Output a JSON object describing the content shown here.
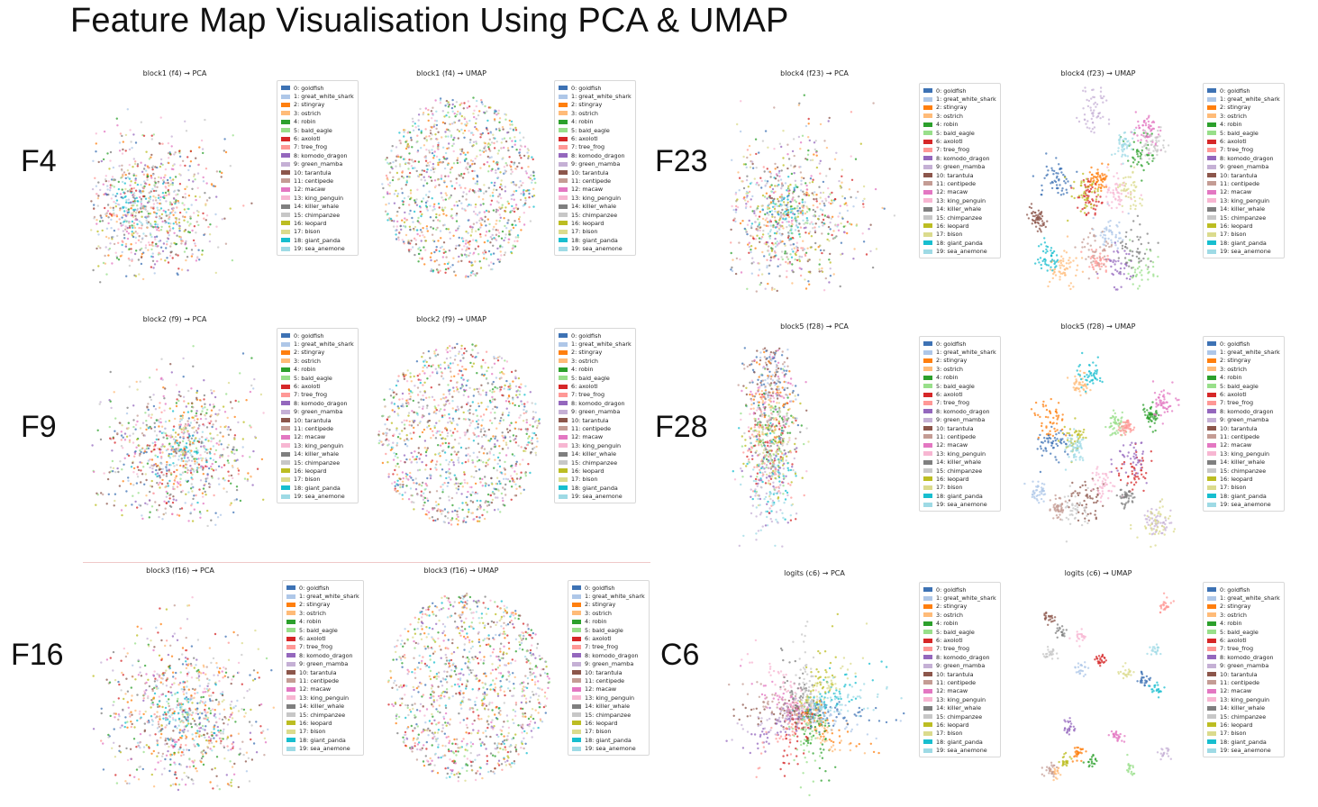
{
  "page_title": "Feature Map Visualisation Using PCA & UMAP",
  "row_labels": [
    "F4",
    "F23",
    "F9",
    "F28",
    "F16",
    "C6"
  ],
  "classes": [
    "0: goldfish",
    "1: great_white_shark",
    "2: stingray",
    "3: ostrich",
    "4: robin",
    "5: bald_eagle",
    "6: axolotl",
    "7: tree_frog",
    "8: komodo_dragon",
    "9: green_mamba",
    "10: tarantula",
    "11: centipede",
    "12: macaw",
    "13: king_penguin",
    "14: killer_whale",
    "15: chimpanzee",
    "16: leopard",
    "17: bison",
    "18: giant_panda",
    "19: sea_anemone"
  ],
  "class_colors": [
    "#3d72b4",
    "#aec7e8",
    "#ff7f0e",
    "#ffbb78",
    "#2ca02c",
    "#98df8a",
    "#d62728",
    "#ff9896",
    "#9467bd",
    "#c5b0d5",
    "#8c564b",
    "#c49c94",
    "#e377c2",
    "#f7b6d2",
    "#7f7f7f",
    "#c7c7c7",
    "#bcbd22",
    "#dbdb8d",
    "#17becf",
    "#9edae5"
  ],
  "chart_data": [
    {
      "type": "scatter",
      "title": "block1 (f4) → PCA",
      "group": "F4"
    },
    {
      "type": "scatter",
      "title": "block1 (f4) → UMAP",
      "group": "F4"
    },
    {
      "type": "scatter",
      "title": "block4 (f23) → PCA",
      "group": "F23"
    },
    {
      "type": "scatter",
      "title": "block4 (f23) → UMAP",
      "group": "F23"
    },
    {
      "type": "scatter",
      "title": "block2 (f9) → PCA",
      "group": "F9"
    },
    {
      "type": "scatter",
      "title": "block2 (f9) → UMAP",
      "group": "F9"
    },
    {
      "type": "scatter",
      "title": "block5 (f28) → PCA",
      "group": "F28"
    },
    {
      "type": "scatter",
      "title": "block5 (f28) → UMAP",
      "group": "F28"
    },
    {
      "type": "scatter",
      "title": "block3 (f16) → PCA",
      "group": "F16"
    },
    {
      "type": "scatter",
      "title": "block3 (f16) → UMAP",
      "group": "F16"
    },
    {
      "type": "scatter",
      "title": "logits (c6) → PCA",
      "group": "C6"
    },
    {
      "type": "scatter",
      "title": "logits (c6) → UMAP",
      "group": "C6"
    }
  ]
}
